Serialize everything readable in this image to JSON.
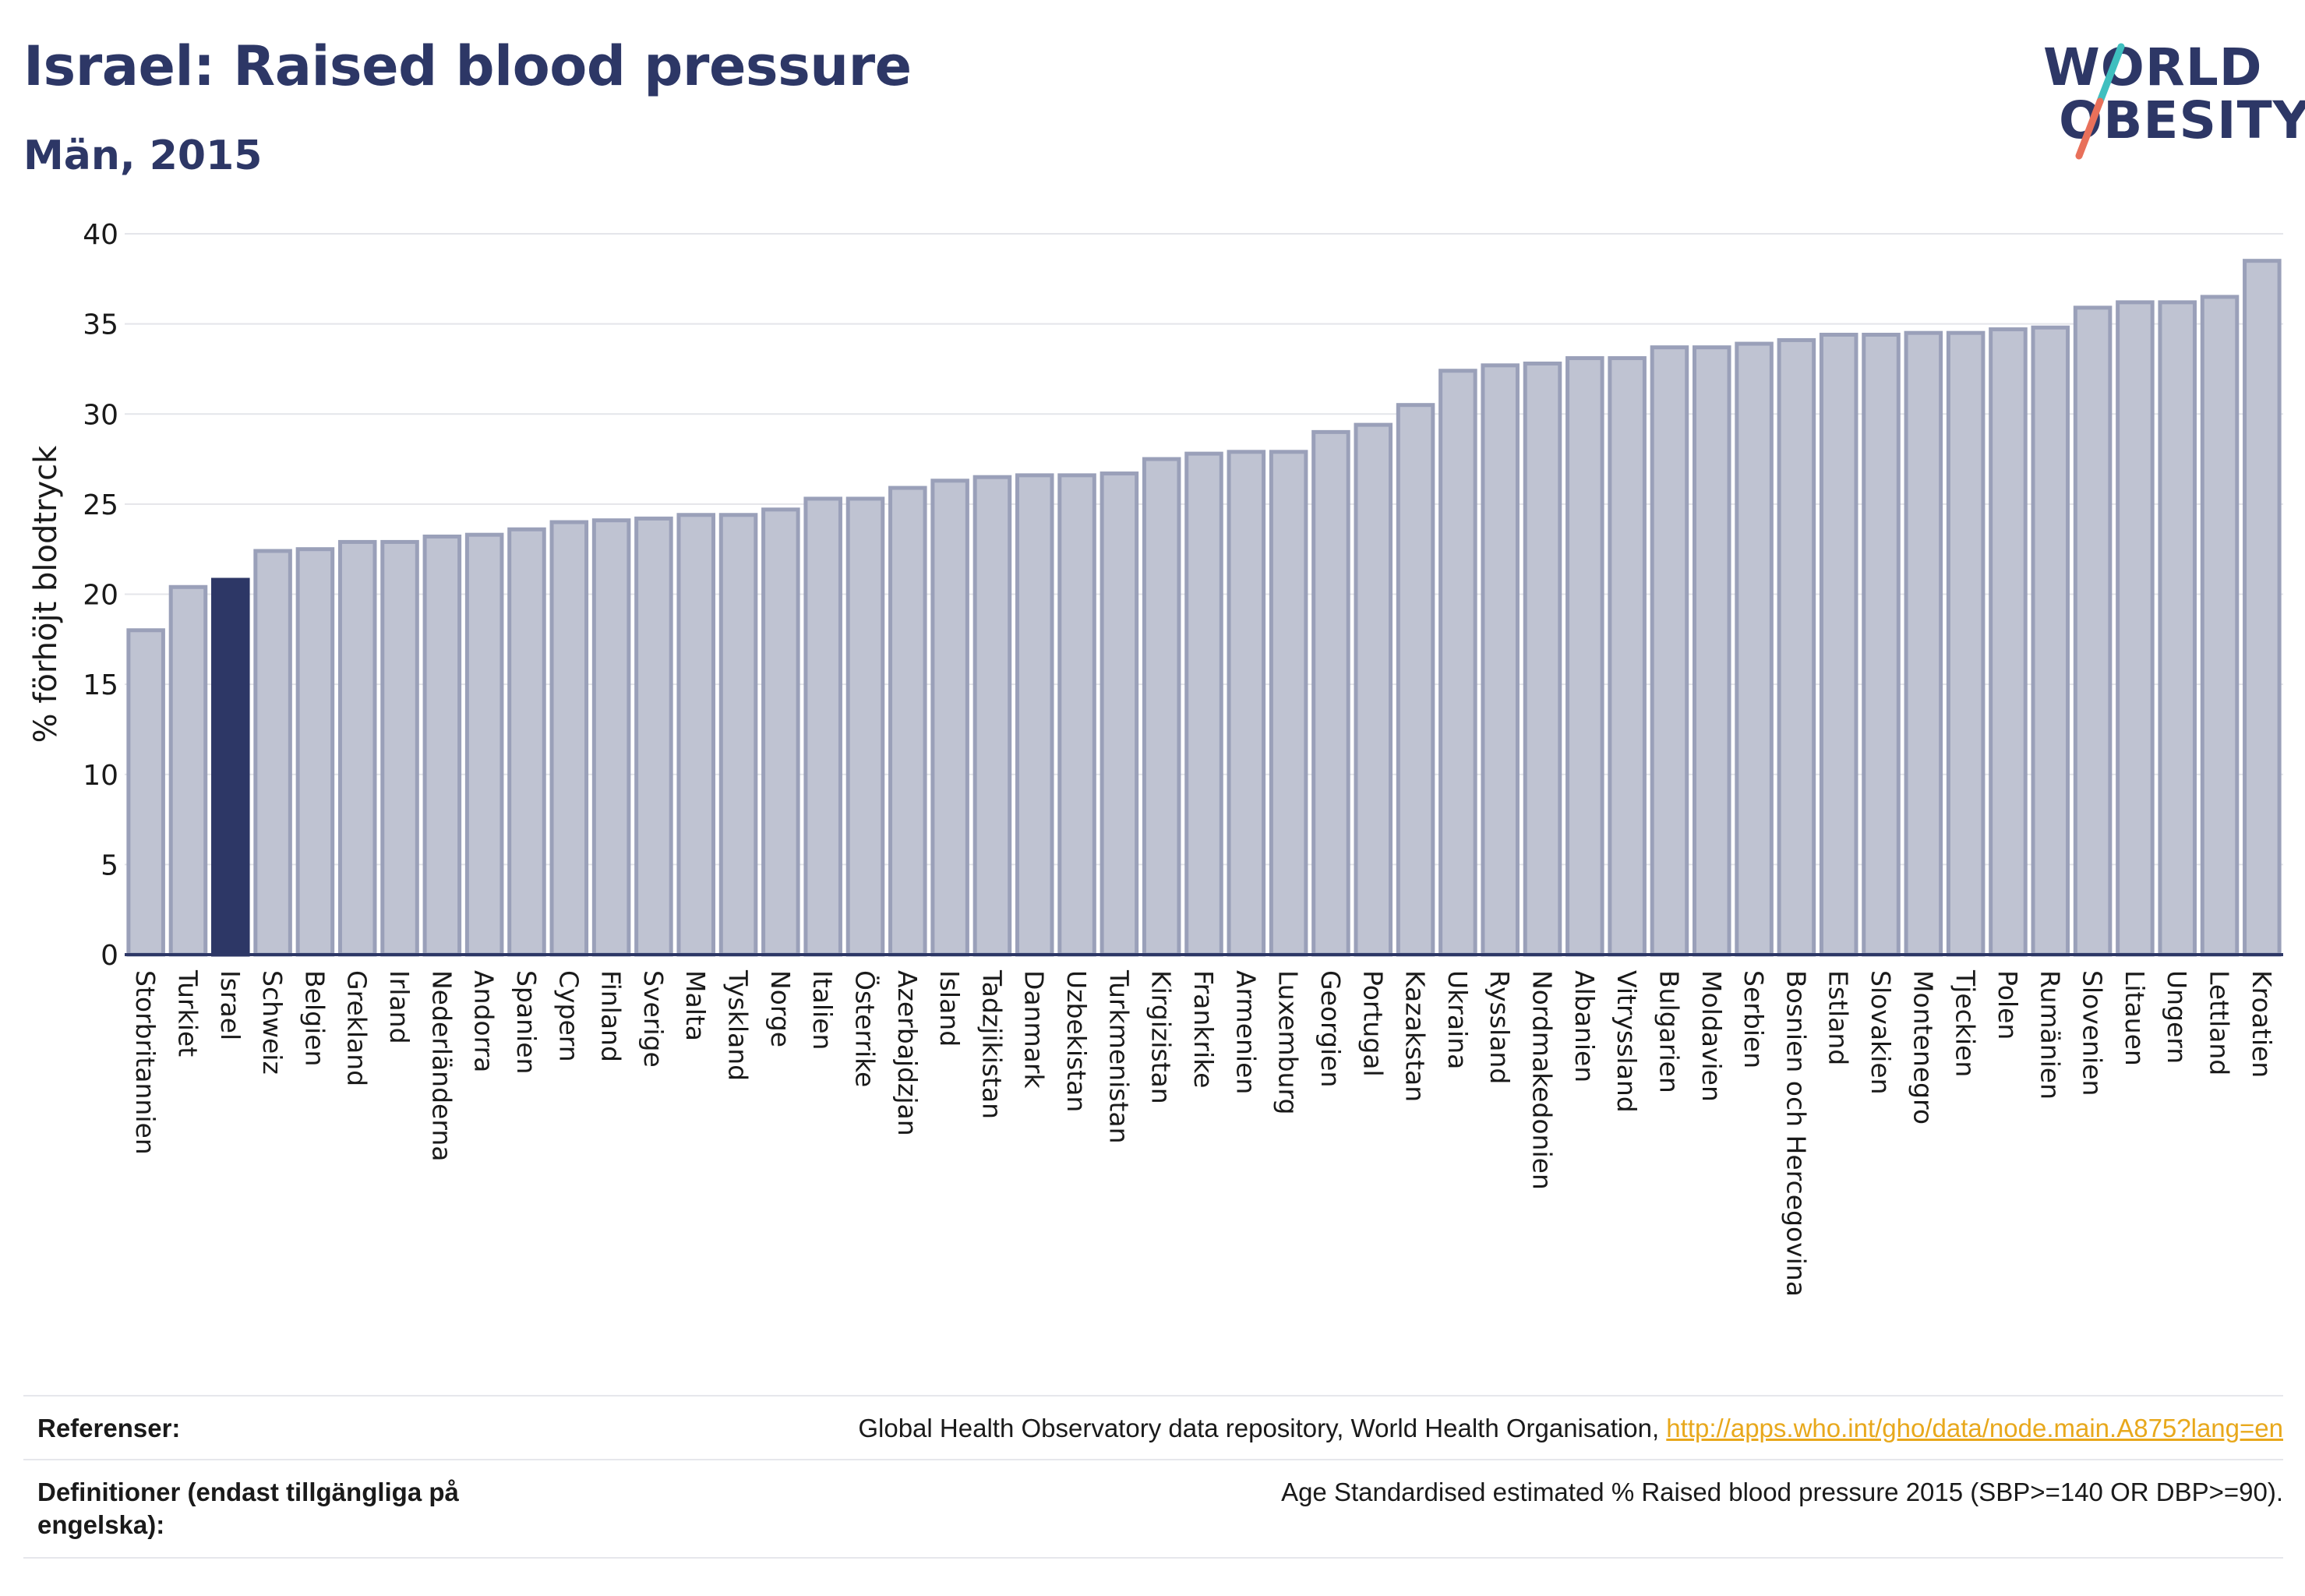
{
  "header": {
    "title": "Israel: Raised blood pressure",
    "subtitle": "Män, 2015"
  },
  "logo": {
    "line1": "WORLD",
    "line2": "OBESITY",
    "accent_colors": [
      "#3fbfbf",
      "#e8705a"
    ]
  },
  "colors": {
    "bar_fill": "#bfc3d2",
    "bar_stroke": "#9aa0b9",
    "highlight_fill": "#2d3766",
    "axis": "#2d3766",
    "grid": "#e4e5ea"
  },
  "chart_data": {
    "type": "bar",
    "title": "Israel: Raised blood pressure",
    "subtitle": "Män, 2015",
    "ylabel": "% förhöjt blodtryck",
    "xlabel": "",
    "ylim": [
      0,
      40
    ],
    "yticks": [
      0,
      5,
      10,
      15,
      20,
      25,
      30,
      35,
      40
    ],
    "grid": true,
    "highlight": "Israel",
    "categories": [
      "Storbritannien",
      "Turkiet",
      "Israel",
      "Schweiz",
      "Belgien",
      "Grekland",
      "Irland",
      "Nederländerna",
      "Andorra",
      "Spanien",
      "Cypern",
      "Finland",
      "Sverige",
      "Malta",
      "Tyskland",
      "Norge",
      "Italien",
      "Österrike",
      "Azerbajdzjan",
      "Island",
      "Tadzjikistan",
      "Danmark",
      "Uzbekistan",
      "Turkmenistan",
      "Kirgizistan",
      "Frankrike",
      "Armenien",
      "Luxemburg",
      "Georgien",
      "Portugal",
      "Kazakstan",
      "Ukraina",
      "Ryssland",
      "Nordmakedonien",
      "Albanien",
      "Vitryssland",
      "Bulgarien",
      "Moldavien",
      "Serbien",
      "Bosnien och Hercegovina",
      "Estland",
      "Slovakien",
      "Montenegro",
      "Tjeckien",
      "Polen",
      "Rumänien",
      "Slovenien",
      "Litauen",
      "Ungern",
      "Lettland",
      "Kroatien"
    ],
    "values": [
      18.0,
      20.4,
      20.8,
      22.4,
      22.5,
      22.9,
      22.9,
      23.2,
      23.3,
      23.6,
      24.0,
      24.1,
      24.2,
      24.4,
      24.4,
      24.7,
      25.3,
      25.3,
      25.9,
      26.3,
      26.5,
      26.6,
      26.6,
      26.7,
      27.5,
      27.8,
      27.9,
      27.9,
      29.0,
      29.4,
      30.5,
      32.4,
      32.7,
      32.8,
      33.1,
      33.1,
      33.7,
      33.7,
      33.9,
      34.1,
      34.4,
      34.4,
      34.5,
      34.5,
      34.7,
      34.8,
      35.9,
      36.2,
      36.2,
      36.5,
      38.5
    ]
  },
  "footer": {
    "references_label": "Referenser:",
    "references_text": "Global Health Observatory data repository, World Health Organisation, ",
    "references_link": "http://apps.who.int/gho/data/node.main.A875?lang=en",
    "definitions_label": "Definitioner (endast tillgängliga på engelska):",
    "definitions_text": "Age Standardised estimated % Raised blood pressure 2015 (SBP>=140 OR DBP>=90)."
  }
}
